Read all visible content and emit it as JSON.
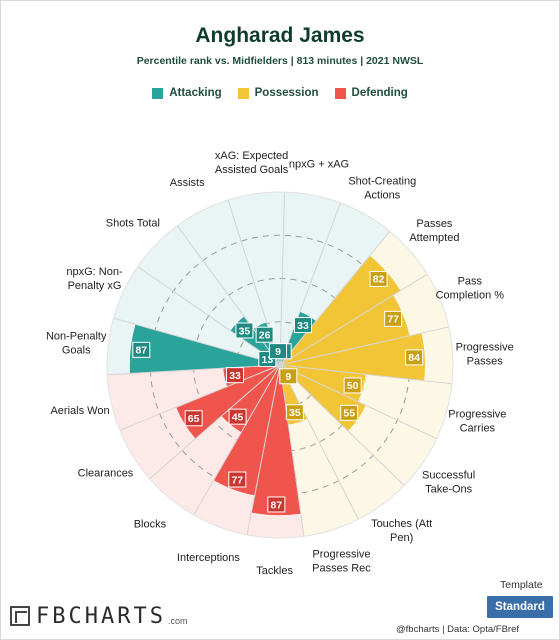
{
  "header": {
    "title": "Angharad James",
    "subtitle": "Percentile rank vs. Midfielders | 813 minutes | 2021 NWSL"
  },
  "legend": [
    {
      "label": "Attacking",
      "color": "#2aa39a"
    },
    {
      "label": "Possession",
      "color": "#f2c537"
    },
    {
      "label": "Defending",
      "color": "#f0554d"
    }
  ],
  "chart_data": {
    "type": "polar-bar",
    "max": 100,
    "categories": [
      {
        "label": [
          "npxG + xAG"
        ],
        "value": 6,
        "group": "Attacking"
      },
      {
        "label": [
          "Shot-Creating",
          "Actions"
        ],
        "value": 33,
        "group": "Attacking"
      },
      {
        "label": [
          "Passes",
          "Attempted"
        ],
        "value": 82,
        "group": "Possession"
      },
      {
        "label": [
          "Pass",
          "Completion %"
        ],
        "value": 77,
        "group": "Possession"
      },
      {
        "label": [
          "Progressive",
          "Passes"
        ],
        "value": 84,
        "group": "Possession"
      },
      {
        "label": [
          "Progressive",
          "Carries"
        ],
        "value": 50,
        "group": "Possession"
      },
      {
        "label": [
          "Successful",
          "Take-Ons"
        ],
        "value": 55,
        "group": "Possession"
      },
      {
        "label": [
          "Touches (Att",
          "Pen)"
        ],
        "value": 9,
        "group": "Possession"
      },
      {
        "label": [
          "Progressive",
          "Passes Rec"
        ],
        "value": 35,
        "group": "Possession"
      },
      {
        "label": [
          "Tackles"
        ],
        "value": 87,
        "group": "Defending"
      },
      {
        "label": [
          "Interceptions"
        ],
        "value": 77,
        "group": "Defending"
      },
      {
        "label": [
          "Blocks"
        ],
        "value": 45,
        "group": "Defending"
      },
      {
        "label": [
          "Clearances"
        ],
        "value": 65,
        "group": "Defending"
      },
      {
        "label": [
          "Aerials Won"
        ],
        "value": 33,
        "group": "Defending"
      },
      {
        "label": [
          "Non-Penalty",
          "Goals"
        ],
        "value": 87,
        "group": "Attacking"
      },
      {
        "label": [
          "npxG: Non-",
          "Penalty xG"
        ],
        "value": 13,
        "group": "Attacking"
      },
      {
        "label": [
          "Shots Total"
        ],
        "value": 35,
        "group": "Attacking"
      },
      {
        "label": [
          "Assists"
        ],
        "value": 26,
        "group": "Attacking"
      },
      {
        "label": [
          "xAG: Expected",
          "Assisted Goals"
        ],
        "value": 9,
        "group": "Attacking"
      }
    ],
    "group_colors": {
      "Attacking": {
        "bar": "#2aa39a",
        "bg": "#e8f5f4",
        "box": "#1f8a82"
      },
      "Possession": {
        "bar": "#f2c537",
        "bg": "#fdf8e6",
        "box": "#c9a013"
      },
      "Defending": {
        "bar": "#f0554d",
        "bg": "#fde9e8",
        "box": "#c9362f"
      }
    },
    "grid": true
  },
  "branding": {
    "logo_text": "FBCHARTS",
    "logo_suffix": ".com",
    "template_label": "Template",
    "template_button": "Standard",
    "credit": "@fbcharts | Data: Opta/FBref"
  }
}
